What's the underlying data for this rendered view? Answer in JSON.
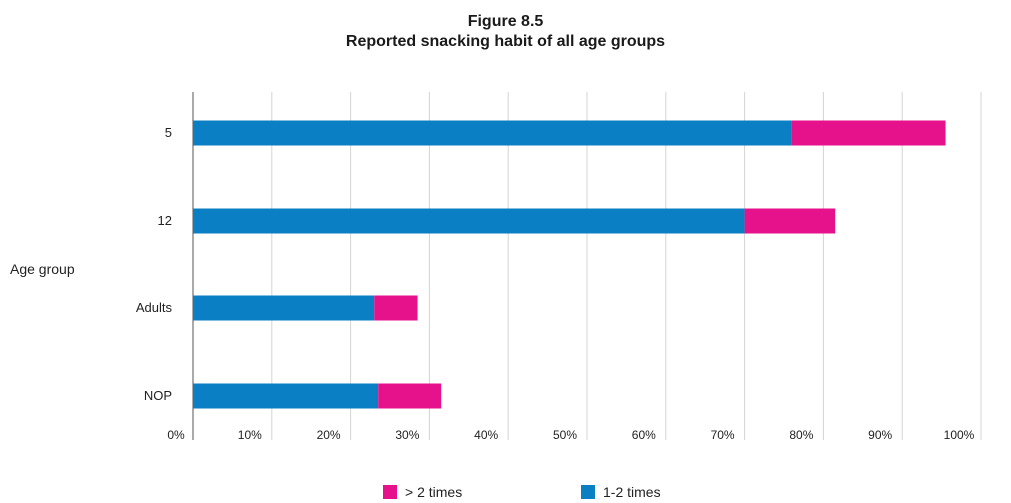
{
  "chart_data": {
    "type": "bar",
    "orientation": "horizontal",
    "stacked": true,
    "title": "Figure 8.5",
    "subtitle": "Reported snacking habit of all age groups",
    "ylabel": "Age group",
    "xlabel": "",
    "categories": [
      "5",
      "12",
      "Adults",
      "NOP"
    ],
    "x_ticks": [
      "0%",
      "10%",
      "20%",
      "30%",
      "40%",
      "50%",
      "60%",
      "70%",
      "80%",
      "90%",
      "100%"
    ],
    "xlim": [
      0,
      100
    ],
    "grid": true,
    "legend_position": "bottom",
    "series": [
      {
        "name": "1-2 times",
        "color": "#0a7fc4",
        "values": [
          76,
          70,
          23,
          23.5
        ]
      },
      {
        "name": "> 2 times",
        "color": "#e6128b",
        "values": [
          19.5,
          11.5,
          5.5,
          8
        ]
      }
    ],
    "legend": [
      {
        "name": "> 2 times",
        "color": "#e6128b"
      },
      {
        "name": "1-2 times",
        "color": "#0a7fc4"
      }
    ]
  }
}
